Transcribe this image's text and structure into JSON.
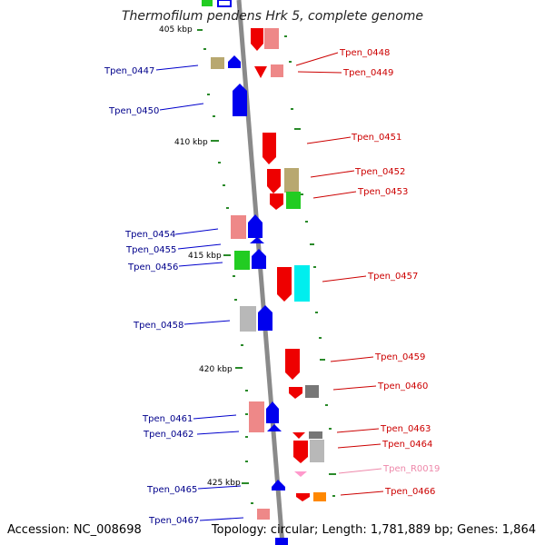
{
  "title": "Thermofilum pendens Hrk 5, complete genome",
  "accession": "Accession: NC_008698",
  "summary": "Topology: circular; Length: 1,781,889 bp; Genes: 1,864",
  "kbp_labels": [
    "405 kbp",
    "410 kbp",
    "415 kbp",
    "420 kbp",
    "425 kbp"
  ],
  "left_labels": [
    "Tpen_0447",
    "Tpen_0450",
    "Tpen_0454",
    "Tpen_0455",
    "Tpen_0456",
    "Tpen_0458",
    "Tpen_0461",
    "Tpen_0462",
    "Tpen_0465",
    "Tpen_0467"
  ],
  "right_labels": [
    "Tpen_0448",
    "Tpen_0449",
    "Tpen_0451",
    "Tpen_0452",
    "Tpen_0453",
    "Tpen_0457",
    "Tpen_0459",
    "Tpen_0460",
    "Tpen_0463",
    "Tpen_0464",
    "Tpen_R0019",
    "Tpen_0466"
  ],
  "colors": {
    "backbone": "#888888",
    "tick": "#2a8a2a",
    "forward_label": "#00008b",
    "reverse_label": "#cc0000",
    "rna_label": "#ee88aa",
    "red": "#ee0000",
    "blue": "#0000ee",
    "salmon": "#ee8888",
    "olive": "#b8a870",
    "green": "#22cc22",
    "cyan": "#00eeee",
    "gray": "#b8b8b8",
    "darkgray": "#777777",
    "orange": "#ff8800",
    "pink": "#ff99cc"
  }
}
